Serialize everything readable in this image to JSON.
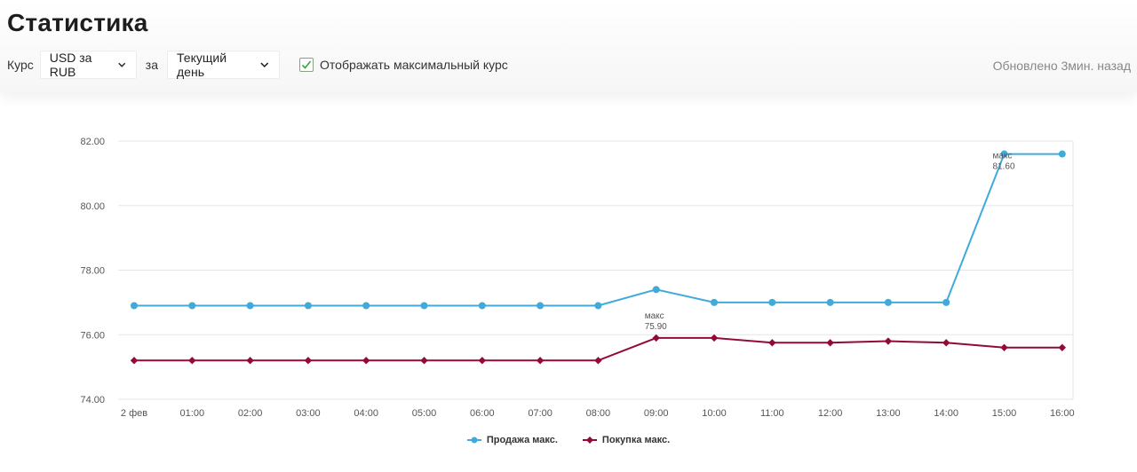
{
  "page": {
    "title": "Статистика"
  },
  "controls": {
    "currency_label": "Курс",
    "currency_value": "USD за RUB",
    "period_label": "за",
    "period_value": "Текущий день",
    "show_max_label": "Отображать максимальный курс",
    "show_max_checked": true,
    "updated_text": "Обновлено 3мин. назад"
  },
  "colors": {
    "sell": "#40aadb",
    "buy": "#930a3a",
    "grid": "#e6e6e6",
    "check": "#3aa33a"
  },
  "chart_data": {
    "type": "line",
    "categories": [
      "2 фев",
      "01:00",
      "02:00",
      "03:00",
      "04:00",
      "05:00",
      "06:00",
      "07:00",
      "08:00",
      "09:00",
      "10:00",
      "11:00",
      "12:00",
      "13:00",
      "14:00",
      "15:00",
      "16:00"
    ],
    "series": [
      {
        "name": "Продажа макс.",
        "marker": "circle",
        "values": [
          76.9,
          76.9,
          76.9,
          76.9,
          76.9,
          76.9,
          76.9,
          76.9,
          76.9,
          77.4,
          77.0,
          77.0,
          77.0,
          77.0,
          77.0,
          81.6,
          81.6
        ]
      },
      {
        "name": "Покупка макс.",
        "marker": "diamond",
        "values": [
          75.2,
          75.2,
          75.2,
          75.2,
          75.2,
          75.2,
          75.2,
          75.2,
          75.2,
          75.9,
          75.9,
          75.75,
          75.75,
          75.8,
          75.75,
          75.6,
          75.6
        ]
      }
    ],
    "yticks": [
      "74.00",
      "76.00",
      "78.00",
      "80.00",
      "82.00"
    ],
    "ylim": [
      74,
      82
    ],
    "grid": true,
    "legend": "bottom-center",
    "annotations": [
      {
        "series": 0,
        "index": 15,
        "label": "макс",
        "value": "81.60"
      },
      {
        "series": 1,
        "index": 9,
        "label": "макс",
        "value": "75.90"
      }
    ]
  }
}
